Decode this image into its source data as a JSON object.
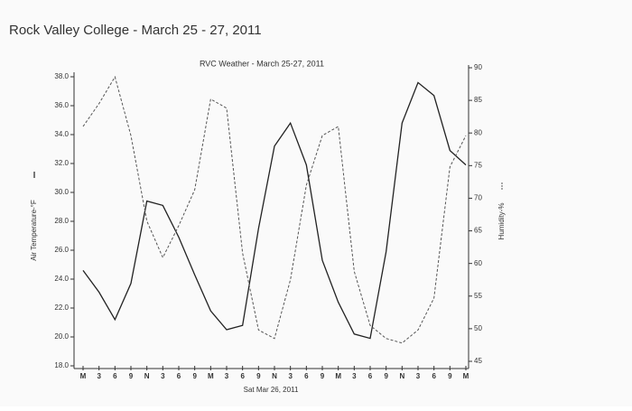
{
  "header": {
    "title": "Rock Valley College  - March 25 - 27, 2011"
  },
  "chart_data": {
    "type": "line",
    "title": "RVC Weather - March 25-27, 2011",
    "xlabel": "Sat Mar 26, 2011",
    "categories": [
      "M",
      "3",
      "6",
      "9",
      "N",
      "3",
      "6",
      "9",
      "M",
      "3",
      "6",
      "9",
      "N",
      "3",
      "6",
      "9",
      "M",
      "3",
      "6",
      "9",
      "N",
      "3",
      "6",
      "9",
      "M"
    ],
    "series": [
      {
        "name": "Air Temperature-°F",
        "color": "#222222",
        "style": "solid",
        "values": [
          24.6,
          23.1,
          21.2,
          23.7,
          29.4,
          29.1,
          26.9,
          24.3,
          21.8,
          20.5,
          20.8,
          27.5,
          33.2,
          34.8,
          31.9,
          25.3,
          22.4,
          20.2,
          19.9,
          25.9,
          34.8,
          37.6,
          36.7,
          32.9,
          31.9
        ]
      },
      {
        "name": "Humidity-%",
        "color": "#555555",
        "style": "dashed",
        "axis": "y2",
        "values": [
          81.0,
          84.5,
          88.6,
          79.6,
          66.5,
          60.9,
          65.8,
          71.3,
          85.2,
          83.8,
          61.6,
          49.8,
          48.5,
          57.5,
          72.0,
          79.6,
          81.0,
          58.8,
          50.5,
          48.5,
          47.8,
          49.8,
          54.7,
          74.8,
          79.6
        ]
      }
    ],
    "ylim": [
      18,
      38
    ],
    "yticks": [
      {
        "value": 18,
        "label": "18.0"
      },
      {
        "value": 20,
        "label": "20.0"
      },
      {
        "value": 22,
        "label": "22.0"
      },
      {
        "value": 24,
        "label": "24.0"
      },
      {
        "value": 26,
        "label": "26.0"
      },
      {
        "value": 28,
        "label": "28.0"
      },
      {
        "value": 30,
        "label": "30.0"
      },
      {
        "value": 32,
        "label": "32.0"
      },
      {
        "value": 34,
        "label": "34.0"
      },
      {
        "value": 36,
        "label": "36.0"
      },
      {
        "value": 38,
        "label": "38.0"
      }
    ],
    "y2lim": [
      45,
      90
    ],
    "y2ticks": [
      45,
      50,
      55,
      60,
      65,
      70,
      75,
      80,
      85,
      90
    ]
  }
}
